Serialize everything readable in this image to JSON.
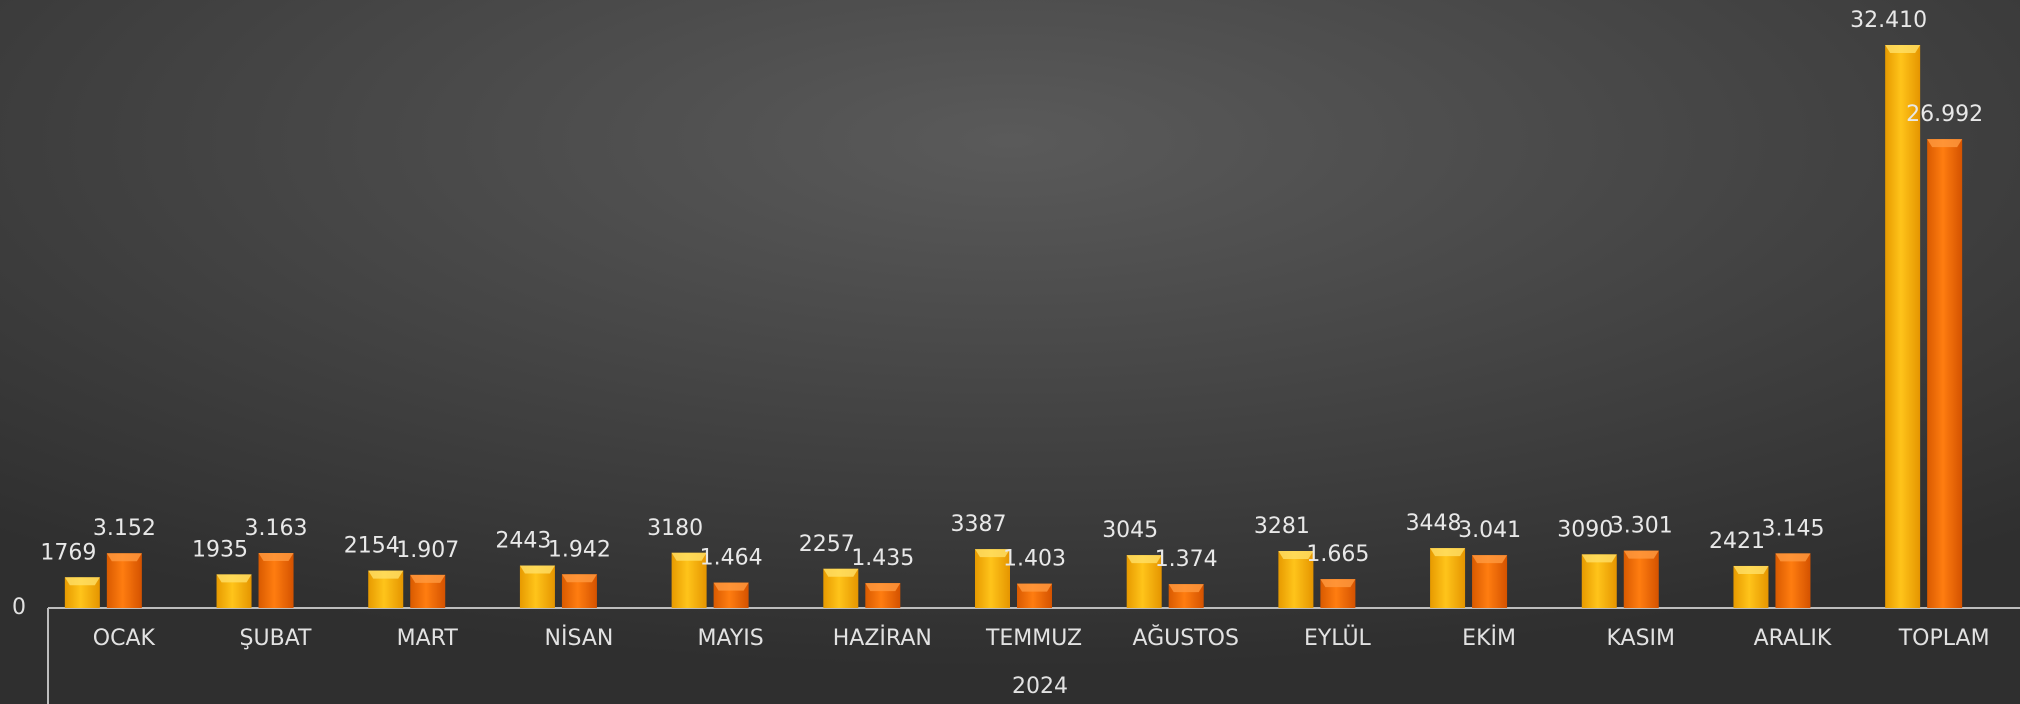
{
  "chart_data": {
    "type": "bar",
    "categories": [
      "OCAK",
      "ŞUBAT",
      "MART",
      "NİSAN",
      "MAYIS",
      "HAZİRAN",
      "TEMMUZ",
      "AĞUSTOS",
      "EYLÜL",
      "EKİM",
      "KASIM",
      "ARALIK",
      "TOPLAM"
    ],
    "xlabel": "2024",
    "series": [
      {
        "color": "#f7b500",
        "values": [
          1769,
          1935,
          2154,
          2443,
          3180,
          2257,
          3387,
          3045,
          3281,
          3448,
          3090,
          2421,
          32410
        ],
        "value_labels": [
          "1769",
          "1935",
          "2154",
          "2443",
          "3180",
          "2257",
          "3387",
          "3045",
          "3281",
          "3448",
          "3090",
          "2421",
          "32.410"
        ]
      },
      {
        "color": "#f56d00",
        "values": [
          3152,
          3163,
          1907,
          1942,
          1464,
          1435,
          1403,
          1374,
          1665,
          3041,
          3301,
          3145,
          26992
        ],
        "value_labels": [
          "3.152",
          "3.163",
          "1.907",
          "1.942",
          "1.464",
          "1.435",
          "1.403",
          "1.374",
          "1.665",
          "3.041",
          "3.301",
          "3.145",
          "26.992"
        ]
      }
    ],
    "ylim": [
      0,
      35000
    ],
    "yticks": [
      0
    ]
  }
}
